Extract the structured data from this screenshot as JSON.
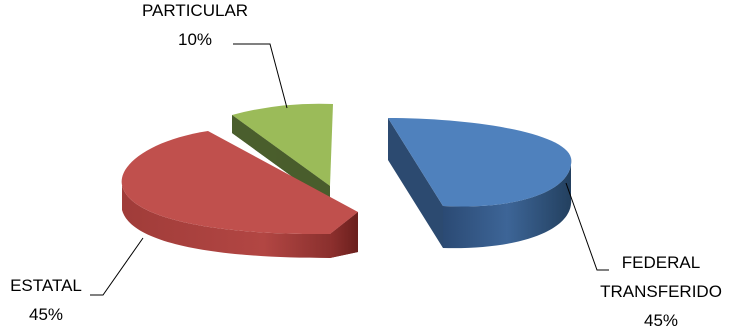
{
  "chart_data": {
    "type": "pie",
    "style": "3d-exploded",
    "title": "",
    "categories": [
      "FEDERAL TRANSFERIDO",
      "ESTATAL",
      "PARTICULAR"
    ],
    "values": [
      45,
      45,
      10
    ],
    "unit": "%",
    "labels": {
      "federal_line1": "FEDERAL",
      "federal_line2": "TRANSFERIDO",
      "federal_pct": "45%",
      "estatal_name": "ESTATAL",
      "estatal_pct": "45%",
      "particular_name": "PARTICULAR",
      "particular_pct": "10%"
    },
    "colors": {
      "federal": "#4f81bd",
      "estatal": "#c0504d",
      "particular": "#9bbb59"
    },
    "legend": "none",
    "data_labels": "outside-with-leader-lines"
  }
}
